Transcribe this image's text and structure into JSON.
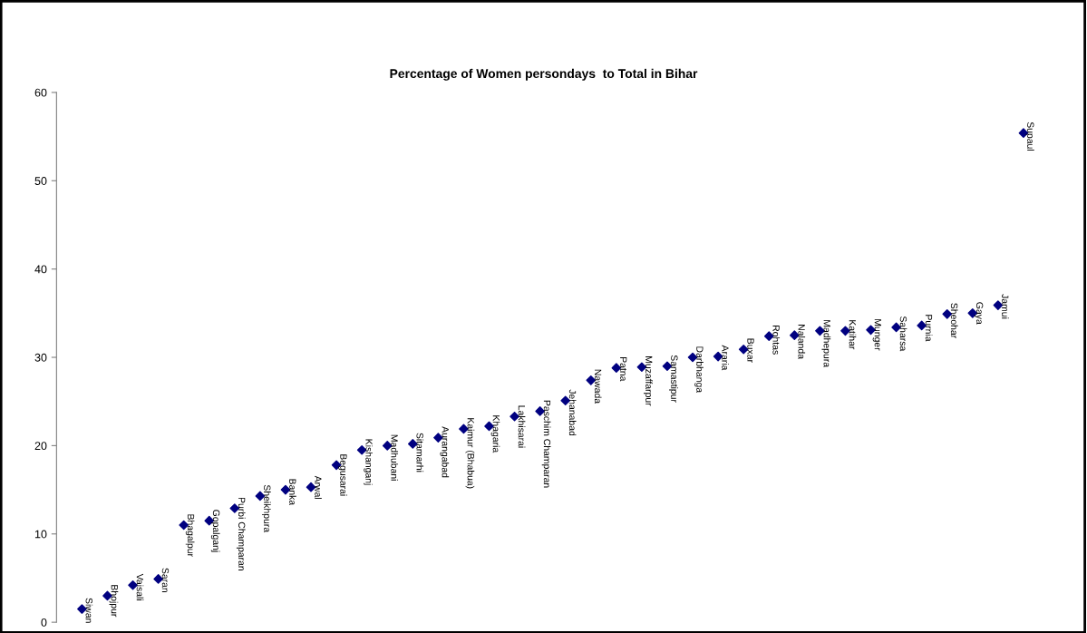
{
  "chart_data": {
    "type": "scatter",
    "title": "Percentage of Women persondays  to Total in Bihar",
    "categories": [
      "Siwan",
      "Bhojpur",
      "Vaisali",
      "Saran",
      "Bhagalpur",
      "Gopalganj",
      "Purbi Champaran",
      "Sheikhpura",
      "Banka",
      "Arwal",
      "Begusarai",
      "Kishanganj",
      "Madhubani",
      "Sitamarhi",
      "Aurangabad",
      "Kaimur (Bhabua)",
      "Khagaria",
      "Lakhisarai",
      "Paschim Champaran",
      "Jehanabad",
      "Nawada",
      "Patna",
      "Muzaffarpur",
      "Samastipur",
      "Darbhanga",
      "Araria",
      "Buxar",
      "Rohtas",
      "Nalanda",
      "Madhepura",
      "Katihar",
      "Munger",
      "Saharsa",
      "Purnia",
      "Sheohar",
      "Gaya",
      "Jamui",
      "Supaul"
    ],
    "series": [
      {
        "color": "#000080",
        "values": [
          1.5,
          3.0,
          4.2,
          4.9,
          11.0,
          11.5,
          12.9,
          14.3,
          15.0,
          15.3,
          17.8,
          19.5,
          20.0,
          20.2,
          20.9,
          21.9,
          22.2,
          23.3,
          23.9,
          25.1,
          27.4,
          28.8,
          28.9,
          29.0,
          30.0,
          30.1,
          30.9,
          32.4,
          32.5,
          33.0,
          33.0,
          33.1,
          33.4,
          33.6,
          34.9,
          35.0,
          35.9,
          55.4
        ]
      }
    ],
    "ylim": [
      0,
      60
    ],
    "yticks": [
      0,
      10,
      20,
      30,
      40,
      50,
      60
    ],
    "marker": "diamond",
    "grid": false,
    "legend": false
  }
}
